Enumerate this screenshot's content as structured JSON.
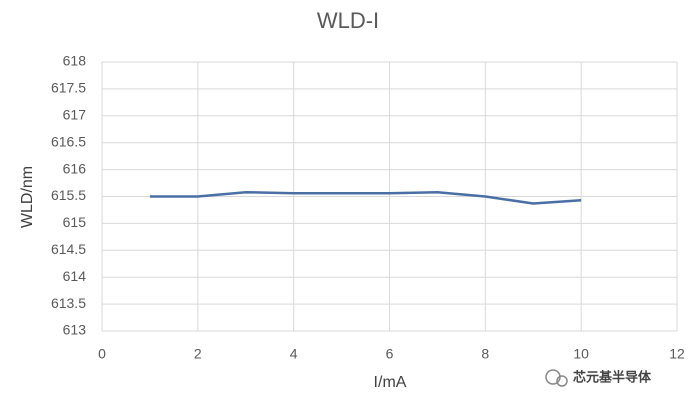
{
  "chart_data": {
    "type": "line",
    "title": "WLD-I",
    "x_label": "I/mA",
    "y_label": "WLD/nm",
    "x": [
      1,
      2,
      3,
      4,
      5,
      6,
      7,
      8,
      9,
      10
    ],
    "series": [
      {
        "name": "WLD",
        "color": "#4a6fa5",
        "values": [
          615.5,
          615.5,
          615.58,
          615.56,
          615.56,
          615.56,
          615.58,
          615.5,
          615.37,
          615.43
        ]
      }
    ],
    "xlim": [
      0,
      12
    ],
    "xticks": [
      0,
      2,
      4,
      6,
      8,
      10,
      12
    ],
    "ylim": [
      613,
      618
    ],
    "yticks": [
      613,
      613.5,
      614,
      614.5,
      615,
      615.5,
      616,
      616.5,
      617,
      617.5,
      618
    ],
    "grid": true
  },
  "watermark": "芯元基半导体"
}
